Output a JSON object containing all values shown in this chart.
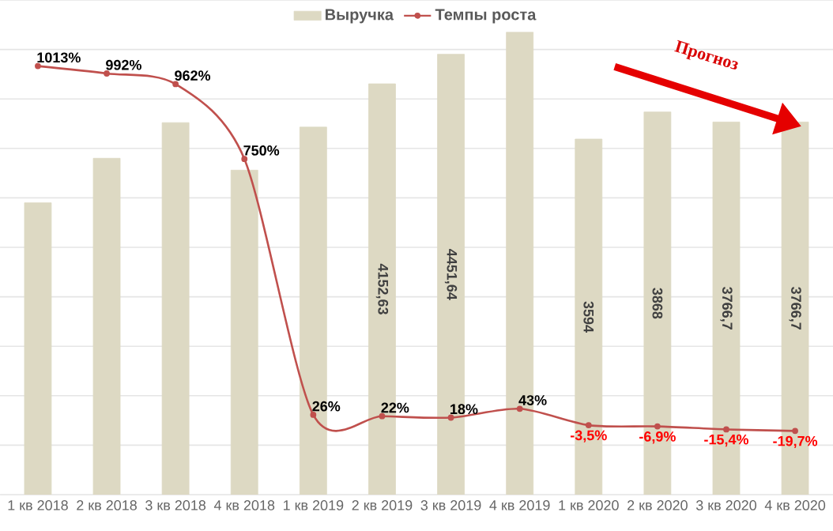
{
  "chart_data": {
    "type": "bar",
    "categories": [
      "1 кв 2018",
      "2 кв 2018",
      "3 кв 2018",
      "4 кв 2018",
      "1 кв 2019",
      "2 кв 2019",
      "3 кв 2019",
      "4 кв 2019",
      "1 кв 2020",
      "2 кв 2020",
      "3 кв 2020",
      "4 кв 2020"
    ],
    "series": [
      {
        "name": "Выручка",
        "color": "#ddd9c3",
        "values": [
          2950,
          3400,
          3760,
          3280,
          3715,
          4152.63,
          4451.64,
          4675,
          3594,
          3868,
          3766.7,
          3766.7
        ],
        "value_labels": [
          null,
          null,
          null,
          null,
          null,
          "4152,63",
          "4451,64",
          null,
          "3594",
          "3868",
          "3766,7",
          "3766,7"
        ]
      },
      {
        "name": "Темпы роста",
        "type": "line",
        "axis": "y2",
        "color": "#c0504d",
        "values": [
          1013,
          992,
          962,
          750,
          26,
          22,
          18,
          43,
          -3.5,
          -6.9,
          -15.4,
          -19.7
        ],
        "value_labels": [
          "1013%",
          "992%",
          "962%",
          "750%",
          "26%",
          "22%",
          "18%",
          "43%",
          "-3,5%",
          "-6,9%",
          "-15,4%",
          "-19,7%"
        ]
      }
    ],
    "ylim": [
      0,
      5000
    ],
    "yticks": [
      {
        "value": 0,
        "label": null
      },
      {
        "value": 500,
        "label": null
      },
      {
        "value": 1000,
        "label": null
      },
      {
        "value": 1500,
        "label": null
      },
      {
        "value": 2000,
        "label": null
      },
      {
        "value": 2500,
        "label": null
      },
      {
        "value": 3000,
        "label": null
      },
      {
        "value": 3500,
        "label": null
      },
      {
        "value": 4000,
        "label": null
      },
      {
        "value": 4500,
        "label": null
      },
      {
        "value": 5000,
        "label": null
      }
    ],
    "y2lim": [
      -200,
      1200
    ],
    "grid": "y",
    "legend": "top",
    "tick_labels": "x",
    "marker": "circle",
    "annotations": [
      "Прогноз"
    ]
  }
}
